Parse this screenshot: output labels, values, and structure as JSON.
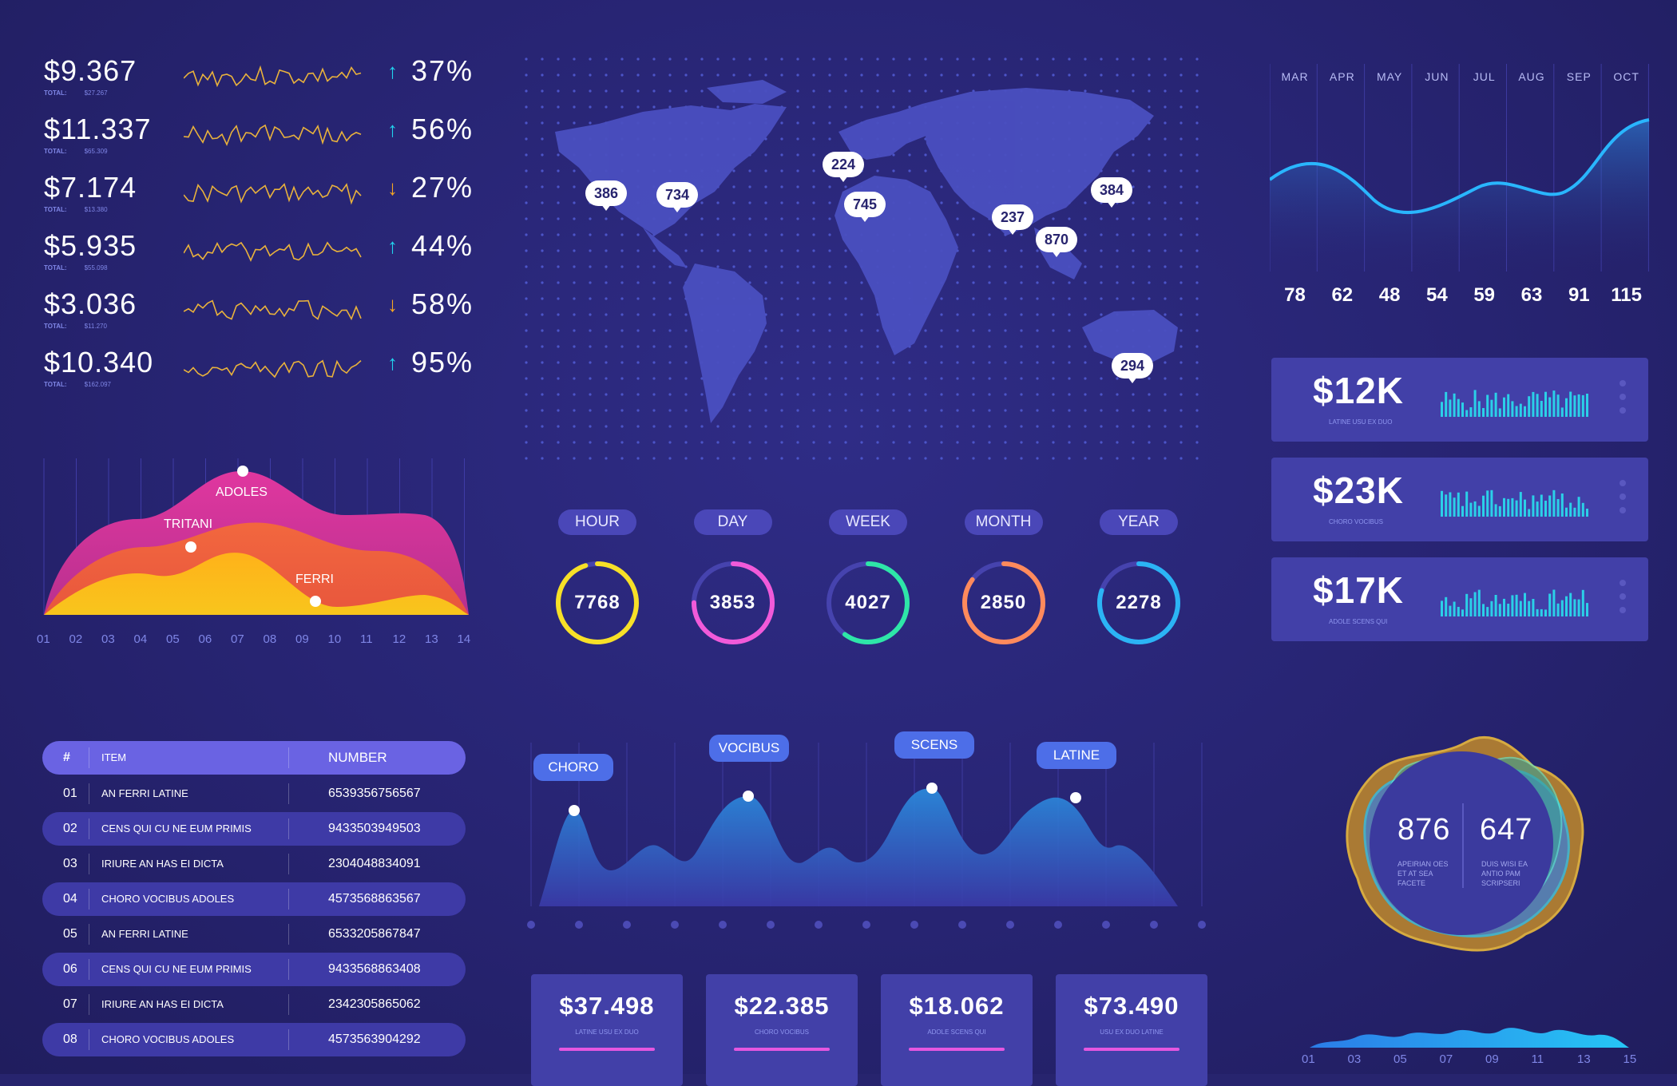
{
  "stats": [
    {
      "amount": "$9.367",
      "total_label": "TOTAL:",
      "total": "$27.267",
      "direction": "up",
      "pct": "37%"
    },
    {
      "amount": "$11.337",
      "total_label": "TOTAL:",
      "total": "$65.309",
      "direction": "up",
      "pct": "56%"
    },
    {
      "amount": "$7.174",
      "total_label": "TOTAL:",
      "total": "$13.380",
      "direction": "down",
      "pct": "27%"
    },
    {
      "amount": "$5.935",
      "total_label": "TOTAL:",
      "total": "$55.098",
      "direction": "up",
      "pct": "44%"
    },
    {
      "amount": "$3.036",
      "total_label": "TOTAL:",
      "total": "$11.270",
      "direction": "down",
      "pct": "58%"
    },
    {
      "amount": "$10.340",
      "total_label": "TOTAL:",
      "total": "$162.097",
      "direction": "up",
      "pct": "95%"
    }
  ],
  "colors": {
    "up": "#22d3ee",
    "down": "#f5a623",
    "spark": "#e9b23c",
    "ring_hour": "#f7e027",
    "ring_day": "#f15ad9",
    "ring_week": "#2ee6a8",
    "ring_month": "#ff8a5c",
    "ring_year": "#2bb4f5"
  },
  "map": {
    "pins": [
      "386",
      "734",
      "224",
      "745",
      "237",
      "870",
      "384",
      "294"
    ]
  },
  "periods": [
    {
      "label": "HOUR",
      "value": "7768",
      "fraction": 0.95
    },
    {
      "label": "DAY",
      "value": "3853",
      "fraction": 0.75
    },
    {
      "label": "WEEK",
      "value": "4027",
      "fraction": 0.6
    },
    {
      "label": "MONTH",
      "value": "2850",
      "fraction": 0.85
    },
    {
      "label": "YEAR",
      "value": "2278",
      "fraction": 0.8
    }
  ],
  "month_chart": {
    "months": [
      "MAR",
      "APR",
      "MAY",
      "JUN",
      "JUL",
      "AUG",
      "SEP",
      "OCT"
    ],
    "values": [
      "78",
      "62",
      "48",
      "54",
      "59",
      "63",
      "91",
      "115"
    ]
  },
  "cards": [
    {
      "amount": "$12K",
      "sub": "LATINE USU EX DUO"
    },
    {
      "amount": "$23K",
      "sub": "CHORO VOCIBUS"
    },
    {
      "amount": "$17K",
      "sub": "ADOLE SCENS QUI"
    }
  ],
  "area_chart": {
    "labels": [
      "ADOLES",
      "TRITANI",
      "FERRI"
    ],
    "x_ticks": [
      "01",
      "02",
      "03",
      "04",
      "05",
      "06",
      "07",
      "08",
      "09",
      "10",
      "11",
      "12",
      "13",
      "14"
    ]
  },
  "table": {
    "headers": {
      "num": "#",
      "item": "ITEM",
      "number": "NUMBER"
    },
    "rows": [
      {
        "num": "01",
        "item": "AN FERRI LATINE",
        "number": "6539356756567"
      },
      {
        "num": "02",
        "item": "CENS QUI CU NE EUM PRIMIS",
        "number": "9433503949503"
      },
      {
        "num": "03",
        "item": "IRIURE AN HAS EI DICTA",
        "number": "2304048834091"
      },
      {
        "num": "04",
        "item": "CHORO VOCIBUS ADOLES",
        "number": "4573568863567"
      },
      {
        "num": "05",
        "item": "AN FERRI LATINE",
        "number": "6533205867847"
      },
      {
        "num": "06",
        "item": "CENS QUI CU NE EUM PRIMIS",
        "number": "9433568863408"
      },
      {
        "num": "07",
        "item": "IRIURE AN HAS EI DICTA",
        "number": "2342305865062"
      },
      {
        "num": "08",
        "item": "CHORO VOCIBUS ADOLES",
        "number": "4573563904292"
      }
    ]
  },
  "peaks": {
    "tags": [
      "CHORO",
      "VOCIBUS",
      "SCENS",
      "LATINE"
    ]
  },
  "bottom_cards": [
    {
      "amount": "$37.498",
      "sub": "LATINE USU EX DUO"
    },
    {
      "amount": "$22.385",
      "sub": "CHORO VOCIBUS"
    },
    {
      "amount": "$18.062",
      "sub": "ADOLE SCENS QUI"
    },
    {
      "amount": "$73.490",
      "sub": "USU EX DUO LATINE"
    }
  ],
  "blob": {
    "left_value": "876",
    "left_sub": "APEIRIAN OES ET AT SEA FACETE",
    "right_value": "647",
    "right_sub": "DUIS WISI EA ANTIO PAM SCRIPSERI",
    "ticks": [
      "01",
      "03",
      "05",
      "07",
      "09",
      "11",
      "13",
      "15"
    ]
  }
}
